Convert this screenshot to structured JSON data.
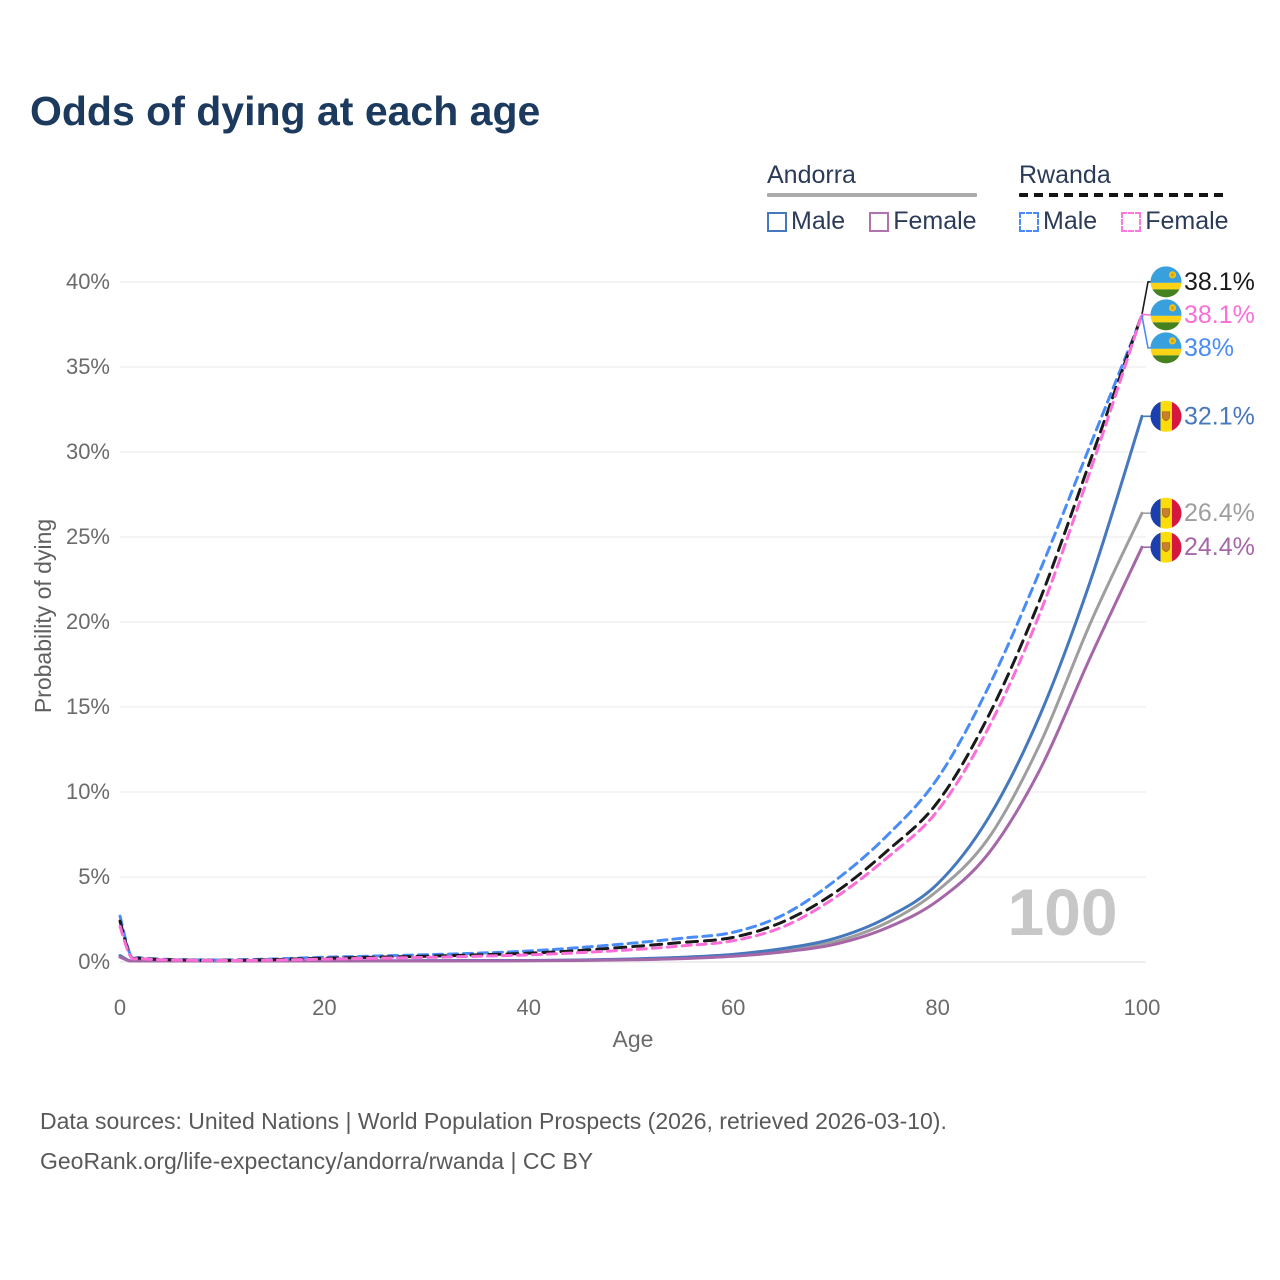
{
  "title": {
    "text": "Odds of dying at each age",
    "color": "#1c3a5e"
  },
  "legend": {
    "groups": [
      {
        "label": "Andorra",
        "line_style": "solid",
        "line_color": "#ababab",
        "items": [
          {
            "label": "Male",
            "swatch_color": "#4678bd",
            "swatch_style": "solid"
          },
          {
            "label": "Female",
            "swatch_color": "#b173ae",
            "swatch_style": "solid"
          }
        ]
      },
      {
        "label": "Rwanda",
        "line_style": "dashed",
        "line_color": "#141414",
        "items": [
          {
            "label": "Male",
            "swatch_color": "#4a8cf7",
            "swatch_style": "dashed"
          },
          {
            "label": "Female",
            "swatch_color": "#fb78de",
            "swatch_style": "dashed"
          }
        ]
      }
    ]
  },
  "chart_data": {
    "type": "line",
    "title": "Odds of dying at each age",
    "xlabel": "Age",
    "ylabel": "Probability of dying",
    "x_ticks": [
      0,
      20,
      40,
      60,
      80,
      100
    ],
    "y_ticks_pct": [
      0,
      5,
      10,
      15,
      20,
      25,
      30,
      35,
      40
    ],
    "xlim": [
      0,
      100
    ],
    "ylim_pct": [
      0,
      40
    ],
    "grid": true,
    "hover_age_label": "100",
    "ages": [
      0,
      1,
      2,
      5,
      10,
      15,
      20,
      25,
      30,
      35,
      40,
      45,
      50,
      55,
      60,
      65,
      70,
      75,
      80,
      85,
      90,
      95,
      100
    ],
    "series": [
      {
        "id": "andorra-both",
        "country": "Andorra",
        "sex": "Both sexes",
        "line": "solid",
        "color": "#9e9e9e",
        "flag": "andorra",
        "end_label": "26.4%",
        "end_value_pct": 26.4,
        "values_pct": [
          0.33,
          0.045,
          0.027,
          0.018,
          0.013,
          0.03,
          0.05,
          0.06,
          0.065,
          0.075,
          0.08,
          0.1,
          0.15,
          0.24,
          0.4,
          0.7,
          1.2,
          2.3,
          4.2,
          7.3,
          12.8,
          20.0,
          26.4
        ]
      },
      {
        "id": "andorra-male",
        "country": "Andorra",
        "sex": "Male",
        "line": "solid",
        "color": "#4678bd",
        "flag": "andorra",
        "end_label": "32.1%",
        "end_value_pct": 32.1,
        "values_pct": [
          0.38,
          0.05,
          0.03,
          0.02,
          0.015,
          0.04,
          0.06,
          0.07,
          0.08,
          0.09,
          0.09,
          0.12,
          0.18,
          0.28,
          0.45,
          0.8,
          1.4,
          2.6,
          4.6,
          8.5,
          14.5,
          22.5,
          32.1
        ]
      },
      {
        "id": "andorra-female",
        "country": "Andorra",
        "sex": "Female",
        "line": "solid",
        "color": "#a667a9",
        "flag": "andorra",
        "end_label": "24.4%",
        "end_value_pct": 24.4,
        "values_pct": [
          0.29,
          0.04,
          0.024,
          0.016,
          0.012,
          0.025,
          0.04,
          0.05,
          0.055,
          0.065,
          0.07,
          0.09,
          0.13,
          0.2,
          0.34,
          0.6,
          1.05,
          2.0,
          3.6,
          6.4,
          11.3,
          18.0,
          24.4
        ]
      },
      {
        "id": "rwanda-male",
        "country": "Rwanda",
        "sex": "Male",
        "line": "dashed",
        "color": "#4a8cf7",
        "flag": "rwanda",
        "end_label": "38%",
        "end_value_pct": 38.0,
        "values_pct": [
          2.7,
          0.45,
          0.25,
          0.15,
          0.12,
          0.18,
          0.28,
          0.35,
          0.43,
          0.52,
          0.65,
          0.85,
          1.1,
          1.4,
          1.75,
          2.8,
          4.8,
          7.4,
          10.8,
          16.2,
          23.0,
          30.5,
          38.0
        ]
      },
      {
        "id": "rwanda-both",
        "country": "Rwanda",
        "sex": "Both sexes",
        "line": "dashed",
        "color": "#1a1a1a",
        "flag": "rwanda",
        "end_label": "38.1%",
        "end_value_pct": 38.1,
        "values_pct": [
          2.4,
          0.4,
          0.22,
          0.13,
          0.1,
          0.14,
          0.22,
          0.28,
          0.34,
          0.42,
          0.52,
          0.68,
          0.9,
          1.15,
          1.45,
          2.4,
          4.1,
          6.5,
          9.4,
          14.5,
          21.3,
          29.6,
          38.1
        ]
      },
      {
        "id": "rwanda-female",
        "country": "Rwanda",
        "sex": "Female",
        "line": "dashed",
        "color": "#fb6ed8",
        "flag": "rwanda",
        "end_label": "38.1%",
        "end_value_pct": 38.1,
        "values_pct": [
          2.1,
          0.36,
          0.2,
          0.12,
          0.09,
          0.11,
          0.17,
          0.22,
          0.27,
          0.34,
          0.42,
          0.55,
          0.72,
          0.95,
          1.25,
          2.1,
          3.8,
          6.1,
          8.9,
          13.8,
          20.5,
          29.0,
          38.1
        ]
      }
    ]
  },
  "footer": {
    "line1": "Data sources: United Nations | World Population Prospects (2026, retrieved 2026-03-10).",
    "line2": "GeoRank.org/life-expectancy/andorra/rwanda | CC BY"
  }
}
